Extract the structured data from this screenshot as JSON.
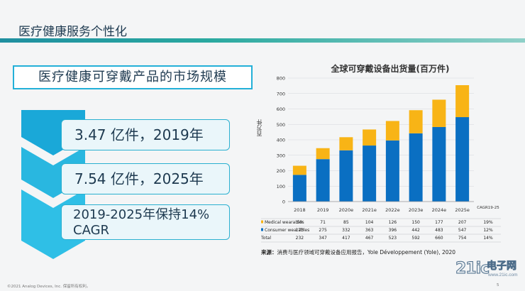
{
  "slide": {
    "title": "医疗健康服务个性化",
    "subtitle": "医疗健康可穿戴产品的市场规模",
    "stats": [
      "3.47 亿件，2019年",
      "7.54 亿件，2025年",
      "2019-2025年保持14%",
      "CAGR"
    ],
    "footer": "©2021 Analog Devices, Inc. 保留所有权利。",
    "page_number": "5"
  },
  "watermark": {
    "brand": "21ic",
    "name": "电子网",
    "url": "www.21ic.com"
  },
  "colors": {
    "consumer": "#0a6fc2",
    "medical": "#f8b416",
    "accent": "#23b0d8",
    "title_bar": "#2aa9a0"
  },
  "chart_data": {
    "type": "bar",
    "stacked": true,
    "title": "全球可穿戴设备出货量(百万件)",
    "ylabel": "百万件",
    "ylim": [
      0,
      800
    ],
    "yticks": [
      "0",
      "100",
      "200",
      "300",
      "400",
      "500",
      "600",
      "700",
      "800"
    ],
    "categories": [
      "2018",
      "2019",
      "2020e",
      "2021e",
      "2022e",
      "2023e",
      "2024e",
      "2025e"
    ],
    "series": [
      {
        "name": "Medical wearables",
        "values": [
          59,
          71,
          85,
          104,
          126,
          150,
          177,
          207
        ],
        "cagr": "19%"
      },
      {
        "name": "Consumer wearables",
        "values": [
          173,
          275,
          332,
          363,
          396,
          442,
          483,
          547
        ],
        "cagr": "12%"
      }
    ],
    "total": {
      "name": "Total",
      "values": [
        232,
        347,
        417,
        467,
        523,
        592,
        660,
        754
      ],
      "cagr": "14%"
    },
    "cagr_header": "CAGR19-25",
    "grid": true,
    "legend": "table-below"
  },
  "source": {
    "label": "来源：",
    "text": "消费与医疗领域可穿戴设备应用报告，Yole Développement (Yole), 2020"
  }
}
